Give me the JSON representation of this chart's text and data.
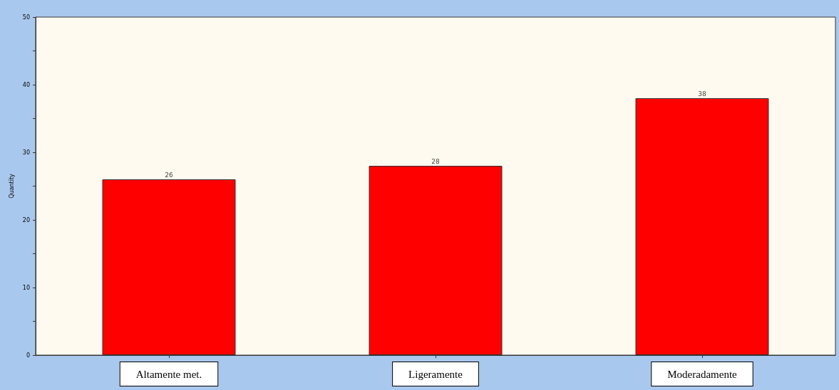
{
  "chart_data": {
    "type": "bar",
    "ylabel": "Quantity",
    "categories": [
      "Altamente met.",
      "Ligeramente",
      "Moderadamente"
    ],
    "values": [
      26,
      28,
      38
    ],
    "color": "#ff0000",
    "ylim": [
      0,
      50
    ],
    "yticks": [
      0,
      10,
      20,
      30,
      40,
      50
    ],
    "grid": false,
    "data_labels": true
  }
}
